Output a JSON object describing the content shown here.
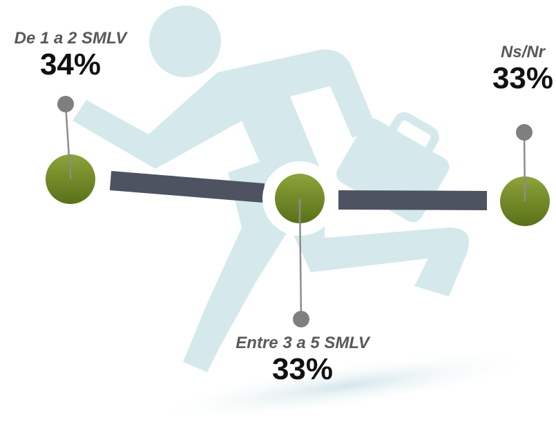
{
  "chart_data": {
    "type": "pie",
    "title": "",
    "categories": [
      "De 1 a 2 SMLV",
      "Entre 3 a 5 SMLV",
      "Ns/Nr"
    ],
    "values": [
      34,
      33,
      33
    ],
    "value_labels": [
      "34%",
      "33%",
      "33%"
    ],
    "unit": "%"
  },
  "colors": {
    "figure": "#d5e9ec",
    "bar": "#4d5360",
    "marker_light": "#8da33a",
    "marker_dark": "#5a7019",
    "connector": "#8c8c8c",
    "pin": "#7f7f7f"
  },
  "icons": [
    "running-businessman-icon"
  ]
}
